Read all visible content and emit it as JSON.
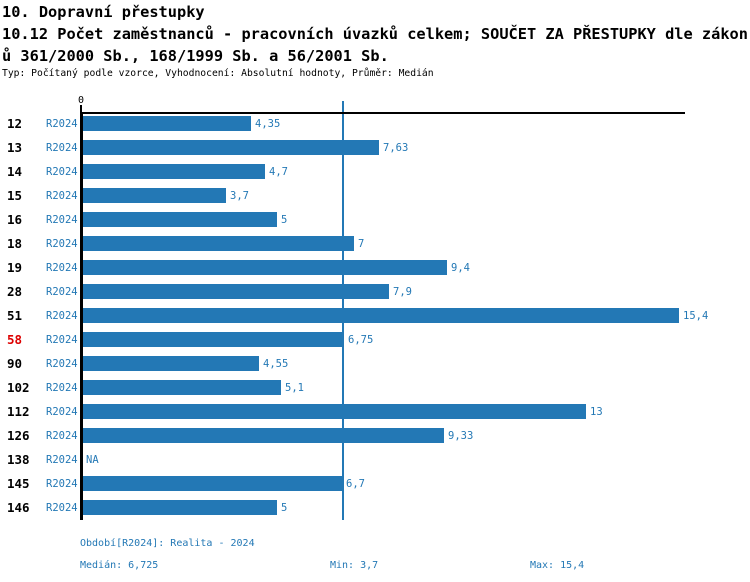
{
  "header": {
    "title": "10. Dopravní přestupky",
    "subtitle_line1": "10.12 Počet zaměstnanců - pracovních úvazků celkem; SOUČET ZA PŘESTUPKY dle zákon",
    "subtitle_line2": "ů 361/2000 Sb., 168/1999 Sb. a 56/2001 Sb.",
    "meta": "Typ: Počítaný podle vzorce, Vyhodnocení: Absolutní hodnoty, Průměr: Medián"
  },
  "chart_data": {
    "type": "bar",
    "orientation": "horizontal",
    "categories": [
      "12",
      "13",
      "14",
      "15",
      "16",
      "18",
      "19",
      "28",
      "51",
      "58",
      "90",
      "102",
      "112",
      "126",
      "138",
      "145",
      "146"
    ],
    "series": [
      {
        "name": "R2024",
        "values": [
          4.35,
          7.63,
          4.7,
          3.7,
          5,
          7,
          9.4,
          7.9,
          15.4,
          6.75,
          4.55,
          5.1,
          13,
          9.33,
          null,
          6.7,
          5
        ]
      }
    ],
    "value_labels": [
      "4,35",
      "7,63",
      "4,7",
      "3,7",
      "5",
      "7",
      "9,4",
      "7,9",
      "15,4",
      "6,75",
      "4,55",
      "5,1",
      "13",
      "9,33",
      "NA",
      "6,7",
      "5"
    ],
    "highlighted_category": "58",
    "axis_zero_label": "0",
    "median_value": 6.725,
    "xlim": [
      0,
      15.55
    ],
    "grid": false,
    "legend_position": "none",
    "bar_color": "#2378b5",
    "label_color": "#2378b5",
    "highlight_color": "#dd0000",
    "axis_color": "#000000"
  },
  "footer": {
    "period": "Období[R2024]: Realita - 2024",
    "median": "Medián: 6,725",
    "min": "Min: 3,7",
    "max": "Max: 15,4"
  }
}
